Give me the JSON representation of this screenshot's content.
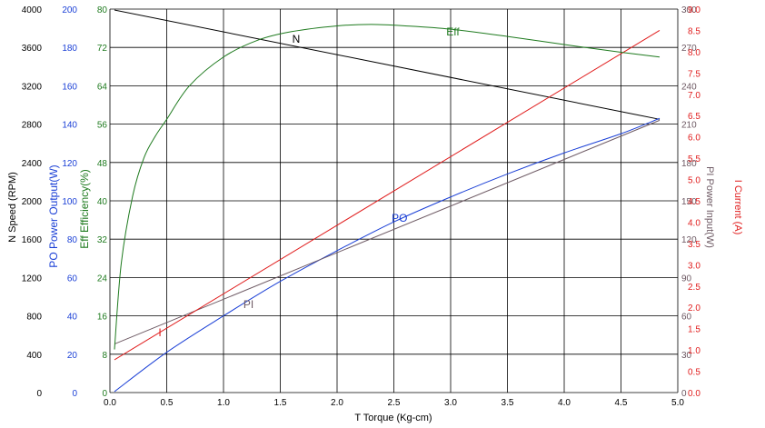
{
  "chart_data": {
    "type": "line",
    "title": "",
    "xlabel": "Torque (Kg-cm)",
    "xlabel_symbol": "T",
    "xlim": [
      0,
      5
    ],
    "xticks": [
      "0.0",
      "0.5",
      "1.0",
      "1.5",
      "2.0",
      "2.5",
      "3.0",
      "3.5",
      "4.0",
      "4.5",
      "5.0"
    ],
    "grid": true,
    "axes": [
      {
        "id": "speed",
        "side": "left",
        "symbol": "N",
        "label": "Speed (RPM)",
        "color": "#000000",
        "range": [
          0,
          4000
        ],
        "ticks": [
          "0",
          "400",
          "800",
          "1200",
          "1600",
          "2000",
          "2400",
          "2800",
          "3200",
          "3600",
          "4000"
        ]
      },
      {
        "id": "power",
        "side": "left",
        "symbol": "PO",
        "label": "Power Output(W)",
        "color": "#1a3fd6",
        "range": [
          0,
          200
        ],
        "ticks": [
          "0",
          "20",
          "40",
          "60",
          "80",
          "100",
          "120",
          "140",
          "160",
          "180",
          "200"
        ]
      },
      {
        "id": "eff",
        "side": "left",
        "symbol": "Eff",
        "label": "Efficiency(%)",
        "color": "#1e7a1e",
        "range": [
          0,
          80
        ],
        "ticks": [
          "0",
          "8",
          "16",
          "24",
          "32",
          "40",
          "48",
          "56",
          "64",
          "72",
          "80"
        ]
      },
      {
        "id": "pin",
        "side": "right",
        "symbol": "PI",
        "label": "Power Input(W)",
        "color": "#6e5a64",
        "range": [
          0,
          300
        ],
        "ticks": [
          "0",
          "30",
          "60",
          "90",
          "120",
          "150",
          "180",
          "210",
          "240",
          "270",
          "300"
        ]
      },
      {
        "id": "current",
        "side": "right",
        "symbol": "I",
        "label": "Current (A)",
        "color": "#e01c1c",
        "range": [
          0,
          9
        ],
        "ticks": [
          "0.0",
          "0.5",
          "1.0",
          "1.5",
          "2.0",
          "2.5",
          "3.0",
          "3.5",
          "4.0",
          "4.5",
          "5.0",
          "5.5",
          "6.0",
          "6.5",
          "7.0",
          "7.5",
          "8.0",
          "8.5",
          "9.0"
        ]
      }
    ],
    "series": [
      {
        "name": "N",
        "axis": "speed",
        "color": "#000000",
        "x": [
          0.04,
          4.84
        ],
        "y": [
          3990,
          2850
        ]
      },
      {
        "name": "PO",
        "axis": "power",
        "color": "#1a3fd6",
        "x": [
          0.04,
          0.5,
          1.0,
          1.5,
          2.0,
          2.5,
          3.0,
          3.5,
          4.0,
          4.5,
          4.84
        ],
        "y": [
          0.5,
          21,
          40,
          58,
          74,
          89,
          102,
          114,
          125,
          135,
          143
        ]
      },
      {
        "name": "PI",
        "axis": "pin",
        "color": "#6e5a64",
        "x": [
          0.04,
          4.84
        ],
        "y": [
          38,
          213
        ]
      },
      {
        "name": "I",
        "axis": "current",
        "color": "#e01c1c",
        "x": [
          0.04,
          4.84
        ],
        "y": [
          0.77,
          8.5
        ]
      },
      {
        "name": "Eff",
        "axis": "eff",
        "color": "#1e7a1e",
        "x": [
          0.04,
          0.1,
          0.2,
          0.3,
          0.4,
          0.5,
          0.7,
          1.0,
          1.3,
          1.6,
          2.0,
          2.3,
          2.6,
          3.0,
          3.5,
          4.0,
          4.5,
          4.84
        ],
        "y": [
          9,
          27,
          41,
          49,
          53.5,
          57,
          64,
          70,
          73.5,
          75.3,
          76.5,
          76.8,
          76.5,
          75.8,
          74.3,
          72.6,
          71,
          70
        ]
      }
    ],
    "annotations": [
      {
        "text": "N",
        "axis": "speed",
        "x": 1.64,
        "y": 3650,
        "color": "#000000"
      },
      {
        "text": "Eff",
        "axis": "eff",
        "x": 3.02,
        "y": 74.5,
        "color": "#1e7a1e"
      },
      {
        "text": "PO",
        "axis": "power",
        "x": 2.55,
        "y": 89,
        "color": "#1a3fd6"
      },
      {
        "text": "PI",
        "axis": "pin",
        "x": 1.22,
        "y": 66,
        "color": "#6e5a64"
      },
      {
        "text": "I",
        "axis": "current",
        "x": 0.44,
        "y": 1.32,
        "color": "#e01c1c"
      }
    ]
  }
}
